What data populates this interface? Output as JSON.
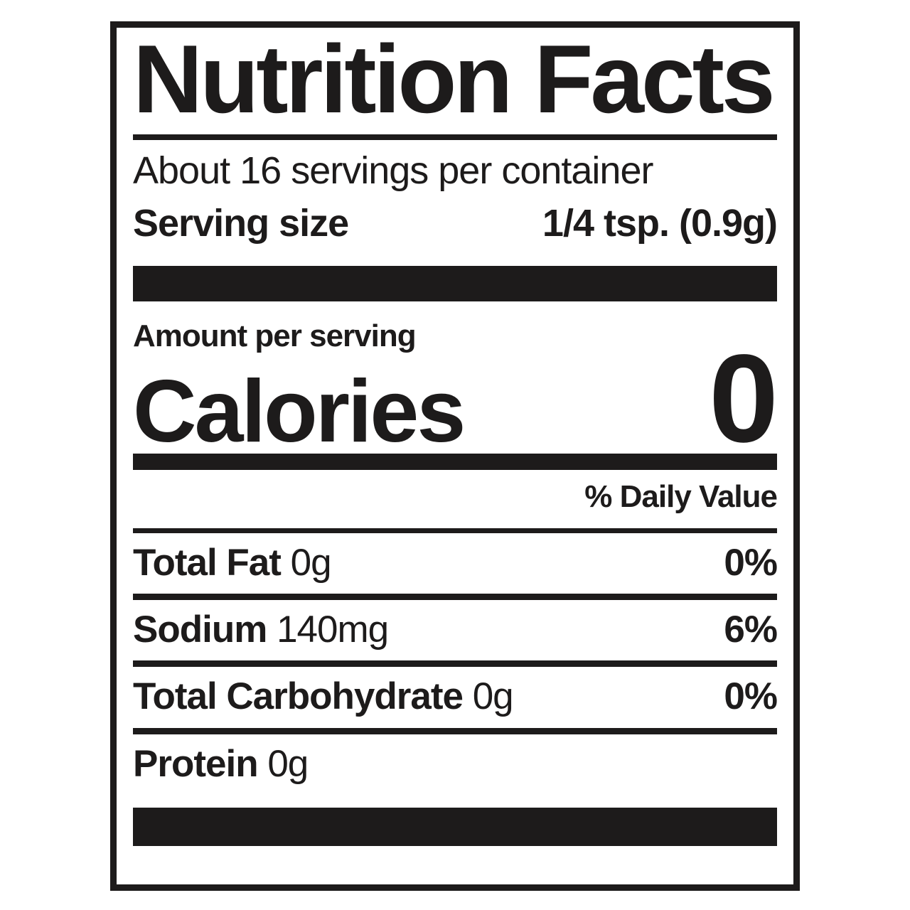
{
  "label": {
    "title": "Nutrition Facts",
    "servings_per_container": "About 16 servings per container",
    "serving_size_label": "Serving size",
    "serving_size_value": "1/4 tsp. (0.9g)",
    "amount_per_serving": "Amount per serving",
    "calories_label": "Calories",
    "calories_value": "0",
    "daily_value_header": "% Daily Value",
    "nutrients": [
      {
        "name": "Total Fat",
        "amount": "0g",
        "dv": "0%"
      },
      {
        "name": "Sodium",
        "amount": "140mg",
        "dv": "6%"
      },
      {
        "name": "Total Carbohydrate",
        "amount": "0g",
        "dv": "0%"
      },
      {
        "name": "Protein",
        "amount": "0g",
        "dv": ""
      }
    ],
    "colors": {
      "ink": "#1d1b1b",
      "background": "#ffffff"
    }
  }
}
